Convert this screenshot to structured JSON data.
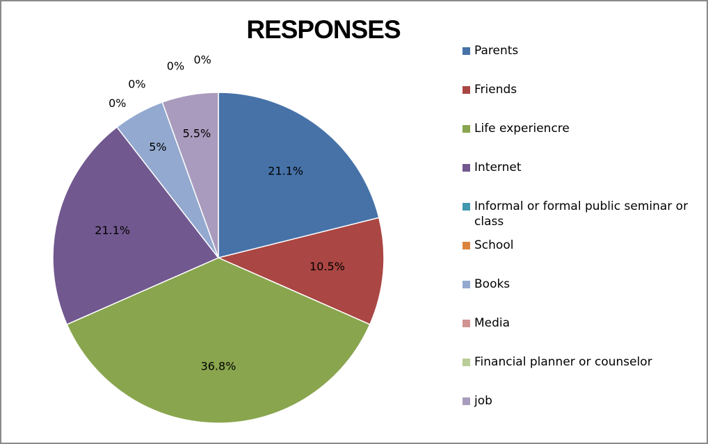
{
  "chart_data": {
    "type": "pie",
    "title": "RESPONSES",
    "categories": [
      "Parents",
      "Friends",
      "Life experiencre",
      "Internet",
      "Informal or formal public seminar or class",
      "School",
      "Books",
      "Media",
      "Financial planner or counselor",
      "job"
    ],
    "values": [
      21.1,
      10.5,
      36.8,
      21.1,
      0,
      0,
      5,
      0,
      0,
      5.5
    ],
    "labels": [
      "21.1%",
      "10.5%",
      "36.8%",
      "21.1%",
      "0%",
      "0%",
      "5%",
      "0%",
      "0%",
      "5.5%"
    ],
    "colors": [
      "#4672A8",
      "#AA4643",
      "#89A54E",
      "#71588F",
      "#4198AF",
      "#DB843D",
      "#93A9CF",
      "#D19392",
      "#B9CD96",
      "#A99BBD"
    ],
    "legend_position": "right"
  }
}
